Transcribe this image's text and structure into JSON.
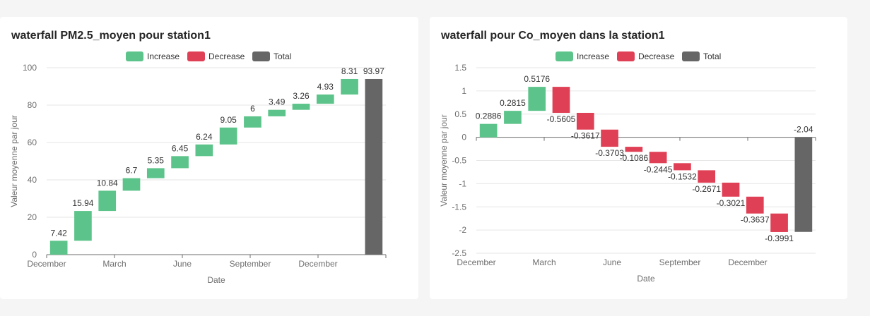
{
  "colors": {
    "increase": "#5cc48a",
    "decrease": "#e04055",
    "total": "#666666"
  },
  "legend": [
    "Increase",
    "Decrease",
    "Total"
  ],
  "chart_data": [
    {
      "type": "waterfall",
      "title": "waterfall PM2.5_moyen pour station1",
      "xlabel": "Date",
      "ylabel": "Valeur moyenne par jour",
      "ylim": [
        0,
        100
      ],
      "yticks": [
        0,
        20,
        40,
        60,
        80,
        100
      ],
      "xtick_labels": [
        "December",
        "March",
        "June",
        "September",
        "December"
      ],
      "values": [
        7.42,
        15.94,
        10.84,
        6.7,
        5.35,
        6.45,
        6.24,
        9.05,
        6,
        3.49,
        3.26,
        4.93,
        8.31
      ],
      "total": 93.97,
      "legend_position": "top-center",
      "grid": true
    },
    {
      "type": "waterfall",
      "title": "waterfall pour Co_moyen dans la station1",
      "xlabel": "Date",
      "ylabel": "Valeur moyenne par jour",
      "ylim": [
        -2.5,
        1.5
      ],
      "yticks": [
        -2.5,
        -2,
        -1.5,
        -1,
        -0.5,
        0,
        0.5,
        1,
        1.5
      ],
      "xtick_labels": [
        "December",
        "March",
        "June",
        "September",
        "December"
      ],
      "values": [
        0.2886,
        0.2815,
        0.5176,
        -0.5605,
        -0.3617,
        -0.3703,
        -0.1086,
        -0.2445,
        -0.1532,
        -0.2671,
        -0.3021,
        -0.3637,
        -0.3991
      ],
      "total": -2.04,
      "legend_position": "top-center",
      "grid": true
    }
  ]
}
